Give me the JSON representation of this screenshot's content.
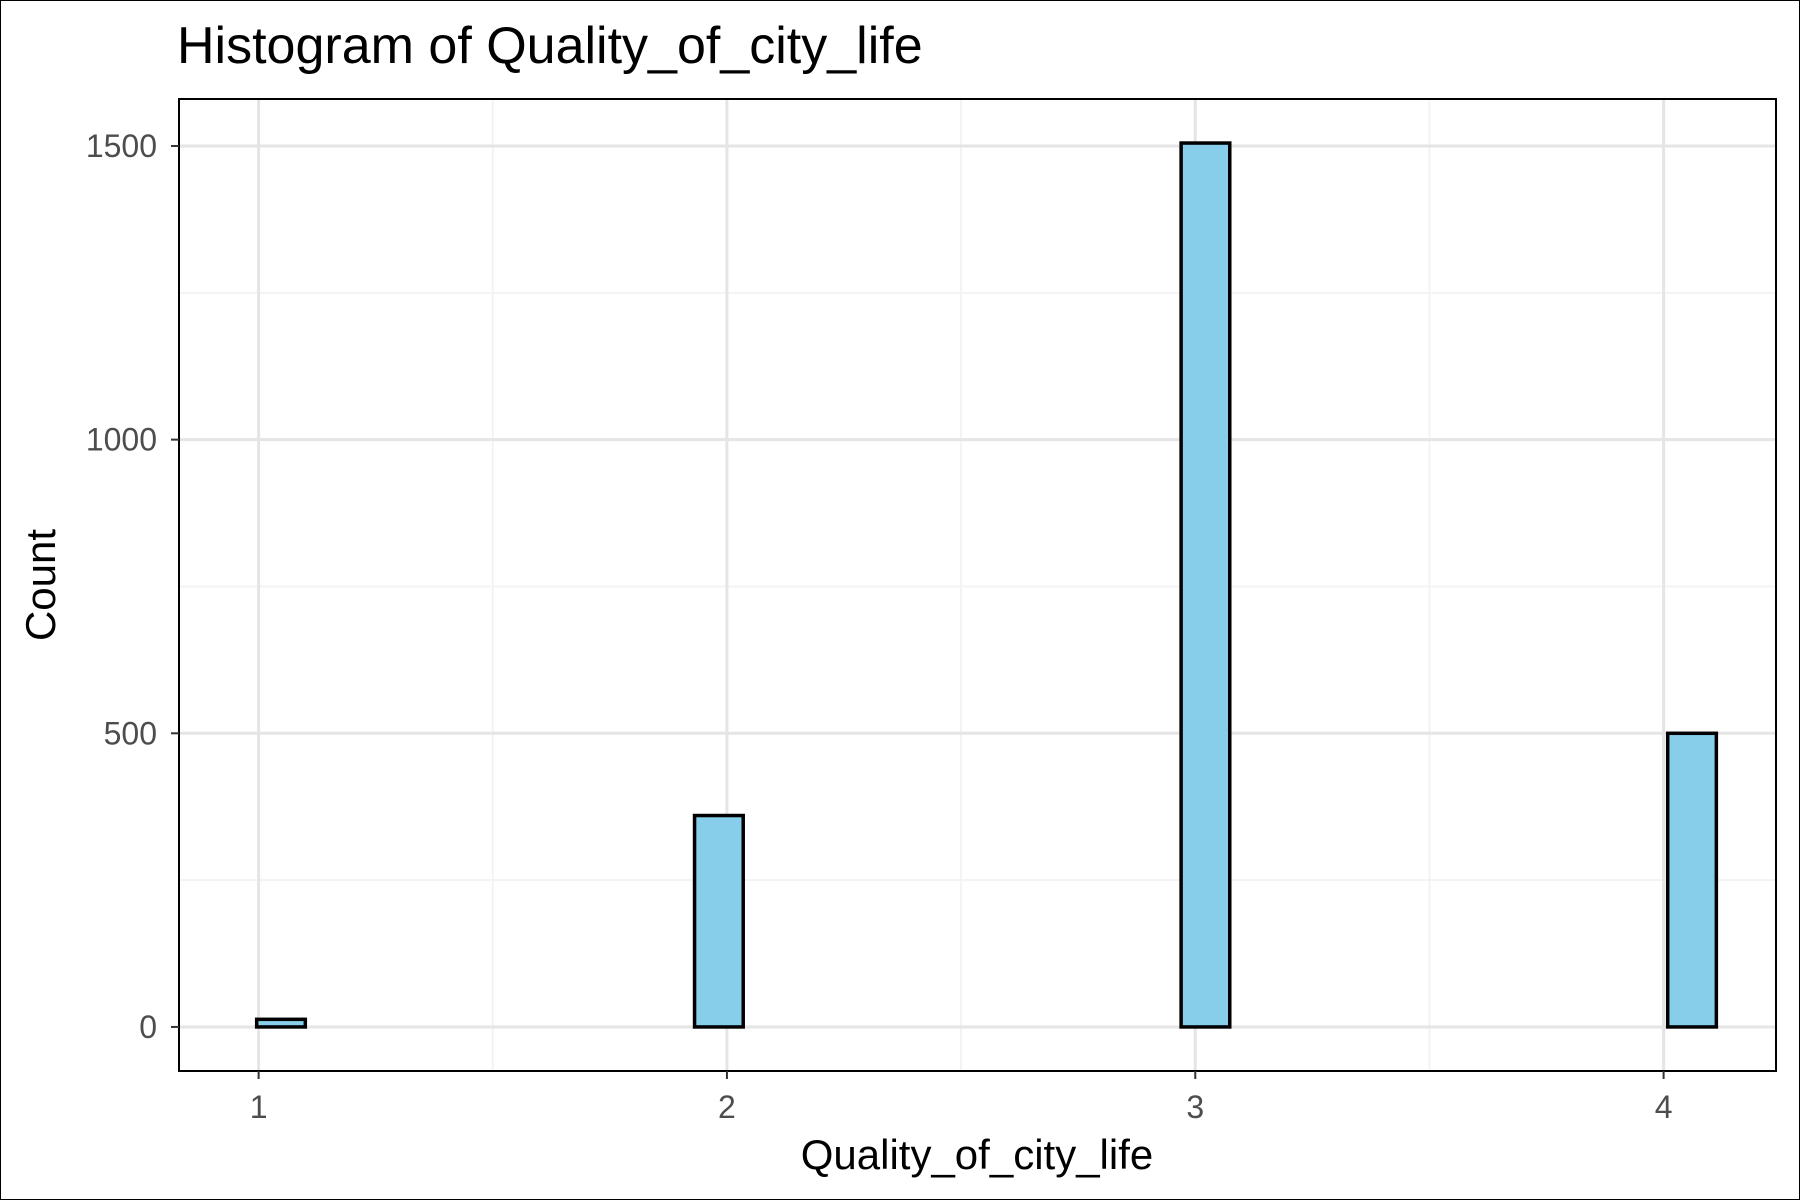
{
  "chart_data": {
    "type": "bar",
    "title": "Histogram of Quality_of_city_life",
    "xlabel": "Quality_of_city_life",
    "ylabel": "Count",
    "x_ticks": [
      "1",
      "2",
      "3",
      "4"
    ],
    "y_ticks": [
      "0",
      "500",
      "1000",
      "1500"
    ],
    "xlim": [
      0.83,
      4.24
    ],
    "ylim": [
      -75,
      1580
    ],
    "grid": true,
    "bins": [
      {
        "x": 1.0478,
        "count": 13
      },
      {
        "x": 1.1517,
        "count": 0
      },
      {
        "x": 1.2555,
        "count": 0
      },
      {
        "x": 1.3594,
        "count": 0
      },
      {
        "x": 1.4633,
        "count": 0
      },
      {
        "x": 1.5672,
        "count": 0
      },
      {
        "x": 1.6711,
        "count": 0
      },
      {
        "x": 1.775,
        "count": 0
      },
      {
        "x": 1.8789,
        "count": 0
      },
      {
        "x": 1.9828,
        "count": 360
      },
      {
        "x": 2.0867,
        "count": 0
      },
      {
        "x": 2.1906,
        "count": 0
      },
      {
        "x": 2.2945,
        "count": 0
      },
      {
        "x": 2.3984,
        "count": 0
      },
      {
        "x": 2.5023,
        "count": 0
      },
      {
        "x": 2.6062,
        "count": 0
      },
      {
        "x": 2.7101,
        "count": 0
      },
      {
        "x": 2.814,
        "count": 0
      },
      {
        "x": 2.9178,
        "count": 0
      },
      {
        "x": 3.0217,
        "count": 1505
      },
      {
        "x": 3.1256,
        "count": 0
      },
      {
        "x": 3.2295,
        "count": 0
      },
      {
        "x": 3.3334,
        "count": 0
      },
      {
        "x": 3.4373,
        "count": 0
      },
      {
        "x": 3.5412,
        "count": 0
      },
      {
        "x": 3.6451,
        "count": 0
      },
      {
        "x": 3.749,
        "count": 0
      },
      {
        "x": 3.8529,
        "count": 0
      },
      {
        "x": 3.9568,
        "count": 0
      },
      {
        "x": 4.0607,
        "count": 500
      }
    ],
    "colors": {
      "fill": "#87ceeb",
      "stroke": "#000000",
      "grid_major": "#e5e5e5",
      "grid_minor": "#f3f3f3",
      "tick_text": "#4d4d4d"
    }
  }
}
